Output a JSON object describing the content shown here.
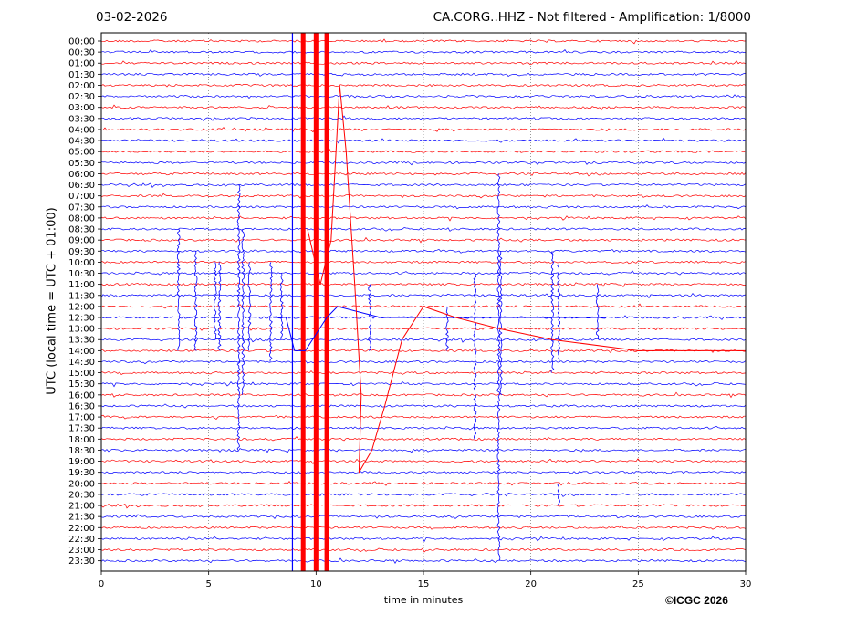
{
  "header": {
    "date": "03-02-2026",
    "title": "CA.CORG..HHZ - Not filtered - Amplification: 1/8000"
  },
  "footer": {
    "copyright": "©ICGC 2026"
  },
  "chart_data": {
    "type": "line",
    "title": "CA.CORG..HHZ - Not filtered - Amplification: 1/8000",
    "xlabel": "time in minutes",
    "ylabel": "UTC (local time = UTC + 01:00)",
    "xlim": [
      0,
      30
    ],
    "x_ticks": [
      0,
      5,
      10,
      15,
      20,
      25,
      30
    ],
    "grid": "vertical dotted lines at x ticks",
    "row_labels": [
      "00:00",
      "00:30",
      "01:00",
      "01:30",
      "02:00",
      "02:30",
      "03:00",
      "03:30",
      "04:00",
      "04:30",
      "05:00",
      "05:30",
      "06:00",
      "06:30",
      "07:00",
      "07:30",
      "08:00",
      "08:30",
      "09:00",
      "09:30",
      "10:00",
      "10:30",
      "11:00",
      "11:30",
      "12:00",
      "12:30",
      "13:00",
      "13:30",
      "14:00",
      "14:30",
      "15:00",
      "15:30",
      "16:00",
      "16:30",
      "17:00",
      "17:30",
      "18:00",
      "18:30",
      "19:00",
      "19:30",
      "20:00",
      "20:30",
      "21:00",
      "21:30",
      "22:00",
      "22:30",
      "23:00",
      "23:30"
    ],
    "trace_colors": [
      "#ff0000",
      "#0000ff"
    ],
    "saturated_bands_red": [
      9.4,
      10.0,
      10.5
    ],
    "saturated_line_blue": 8.9,
    "spike_events_blue": [
      {
        "x": 3.6,
        "from": "08:30",
        "to": "14:00"
      },
      {
        "x": 4.4,
        "from": "09:30",
        "to": "14:00"
      },
      {
        "x": 5.3,
        "from": "10:00",
        "to": "13:30"
      },
      {
        "x": 5.5,
        "from": "10:00",
        "to": "14:00"
      },
      {
        "x": 6.4,
        "from": "06:30",
        "to": "18:30"
      },
      {
        "x": 6.6,
        "from": "08:30",
        "to": "16:00"
      },
      {
        "x": 6.9,
        "from": "10:00",
        "to": "14:00"
      },
      {
        "x": 7.9,
        "from": "10:00",
        "to": "14:30"
      },
      {
        "x": 8.4,
        "from": "10:30",
        "to": "13:30"
      },
      {
        "x": 12.5,
        "from": "11:00",
        "to": "14:00"
      },
      {
        "x": 16.1,
        "from": "12:00",
        "to": "14:00"
      },
      {
        "x": 17.4,
        "from": "10:30",
        "to": "18:00"
      },
      {
        "x": 18.5,
        "from": "06:00",
        "to": "23:30"
      },
      {
        "x": 18.6,
        "from": "09:30",
        "to": "16:00"
      },
      {
        "x": 21.0,
        "from": "09:30",
        "to": "15:00"
      },
      {
        "x": 21.3,
        "from": "10:00",
        "to": "14:30"
      },
      {
        "x": 23.1,
        "from": "11:00",
        "to": "13:30"
      },
      {
        "x": 21.3,
        "from": "20:00",
        "to": "21:00"
      }
    ],
    "long_period_red_curve": [
      {
        "x": 9.6,
        "y": "08:30"
      },
      {
        "x": 10.2,
        "y": "11:00"
      },
      {
        "x": 10.7,
        "y": "09:00"
      },
      {
        "x": 11.1,
        "y": "02:00"
      },
      {
        "x": 11.4,
        "y": "05:00"
      },
      {
        "x": 11.8,
        "y": "11:00"
      },
      {
        "x": 12.1,
        "y": "16:00"
      },
      {
        "x": 12.0,
        "y": "19:30"
      },
      {
        "x": 12.6,
        "y": "18:30"
      },
      {
        "x": 13.2,
        "y": "16:30"
      },
      {
        "x": 14.0,
        "y": "13:30"
      },
      {
        "x": 15.0,
        "y": "12:00"
      },
      {
        "x": 16.5,
        "y": "12:30"
      },
      {
        "x": 18.5,
        "y": "13:00"
      },
      {
        "x": 21.0,
        "y": "13:30"
      },
      {
        "x": 25.0,
        "y": "14:00"
      },
      {
        "x": 30.0,
        "y": "14:00"
      }
    ],
    "long_period_blue_curve": [
      {
        "x": 8.0,
        "y": "12:30"
      },
      {
        "x": 8.6,
        "y": "12:30"
      },
      {
        "x": 9.0,
        "y": "14:00"
      },
      {
        "x": 9.5,
        "y": "14:00"
      },
      {
        "x": 10.5,
        "y": "12:30"
      },
      {
        "x": 11.0,
        "y": "12:00"
      },
      {
        "x": 13.0,
        "y": "12:30"
      },
      {
        "x": 17.0,
        "y": "12:30"
      },
      {
        "x": 19.0,
        "y": "12:30"
      },
      {
        "x": 23.5,
        "y": "12:30"
      }
    ]
  }
}
